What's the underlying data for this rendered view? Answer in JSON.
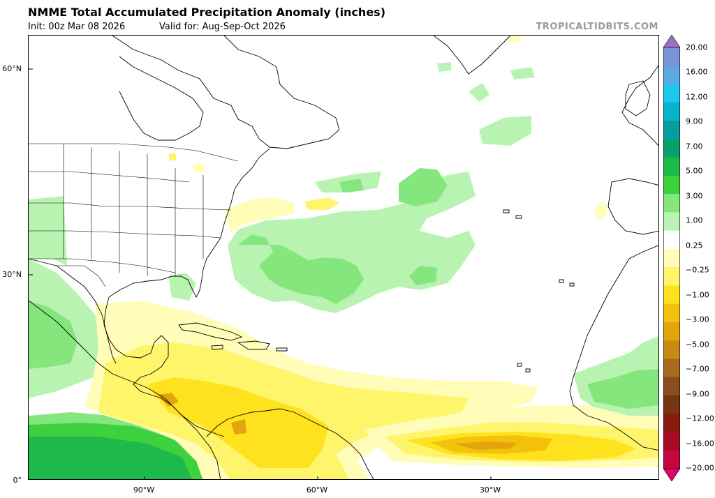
{
  "header": {
    "title": "NMME Total Accumulated Precipitation Anomaly (inches)",
    "init": "Init: 00z Mar 08 2026",
    "valid": "Valid for: Aug-Sep-Oct 2026",
    "brand": "TROPICALTIDBITS.COM"
  },
  "axes": {
    "lat_labels": [
      "60°N",
      "30°N",
      "0°"
    ],
    "lon_labels": [
      "90°W",
      "60°W",
      "30°W"
    ]
  },
  "colorbar": {
    "ticks": [
      "20.00",
      "16.00",
      "12.00",
      "9.00",
      "7.00",
      "5.00",
      "3.00",
      "1.00",
      "0.25",
      "−0.25",
      "−1.00",
      "−3.00",
      "−5.00",
      "−7.00",
      "−9.00",
      "−12.00",
      "−16.00",
      "−20.00"
    ],
    "colors": [
      "#9d71c2",
      "#7a93d3",
      "#5aa9e3",
      "#1ac8f0",
      "#0ab1cb",
      "#079c9f",
      "#07a16b",
      "#1db94a",
      "#3ed13e",
      "#86e67e",
      "#b9f3b2",
      "#ffffff",
      "#fffdb8",
      "#fff56b",
      "#ffe21e",
      "#f4c20d",
      "#e3a50d",
      "#c98a13",
      "#a86a1e",
      "#8a4d1d",
      "#7a3311",
      "#8b1a0e",
      "#a60d22",
      "#c6063c",
      "#de0768"
    ]
  }
}
